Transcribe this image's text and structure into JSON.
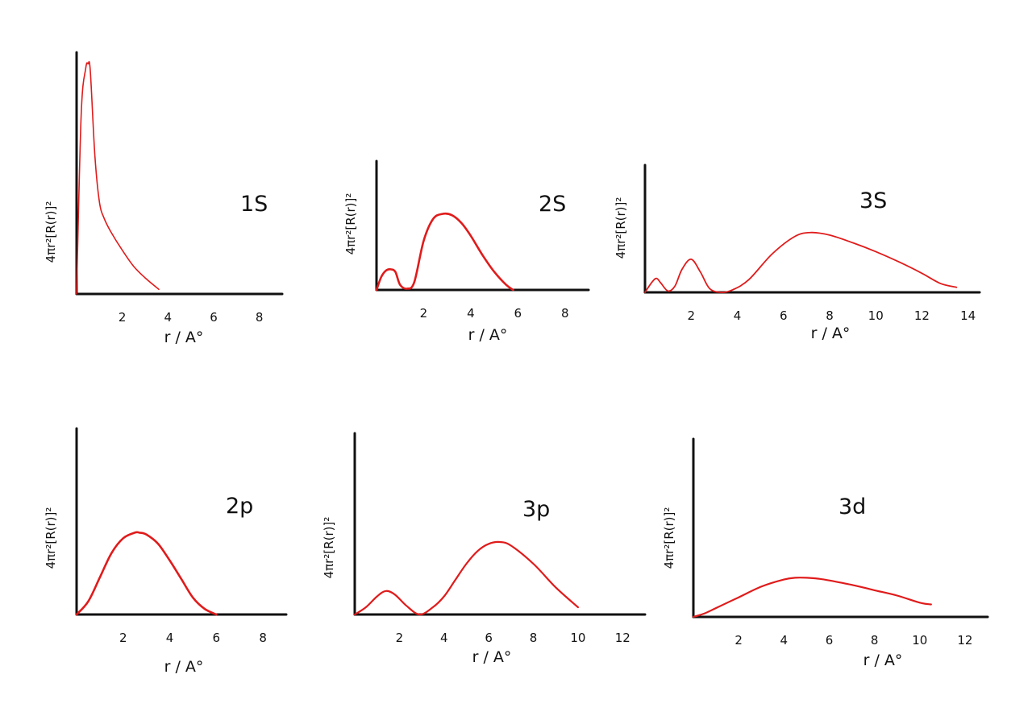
{
  "charts": [
    {
      "id": "1s",
      "label": "1S",
      "ylabel": "4πr²[R(r)]²",
      "xlabel": "r / A°",
      "ticks": [
        "2",
        "4",
        "6",
        "8"
      ]
    },
    {
      "id": "2s",
      "label": "2S",
      "ylabel": "4πr²[R(r)]²",
      "xlabel": "r / A°",
      "ticks": [
        "2",
        "4",
        "6",
        "8"
      ]
    },
    {
      "id": "3s",
      "label": "3S",
      "ylabel": "4πr²[R(r)]²",
      "xlabel": "r / A°",
      "ticks": [
        "2",
        "4",
        "6",
        "8",
        "10",
        "12",
        "14"
      ]
    },
    {
      "id": "2p",
      "label": "2p",
      "ylabel": "4πr²[R(r)]²",
      "xlabel": "r / A°",
      "ticks": [
        "2",
        "4",
        "6",
        "8"
      ]
    },
    {
      "id": "3p",
      "label": "3p",
      "ylabel": "4πr²[R(r)]²",
      "xlabel": "r / A°",
      "ticks": [
        "2",
        "4",
        "6",
        "8",
        "10",
        "12"
      ]
    },
    {
      "id": "3d",
      "label": "3d",
      "ylabel": "4πr²[R(r)]²",
      "xlabel": "r / A°",
      "ticks": [
        "2",
        "4",
        "6",
        "8",
        "10",
        "12"
      ]
    }
  ],
  "chart_data": [
    {
      "type": "line",
      "orbital": "1s",
      "xlabel": "r / A°",
      "ylabel": "4πr²[R(r)]²",
      "xlim": [
        0,
        9
      ],
      "ylim": [
        0,
        1.05
      ],
      "x": [
        0,
        0.2,
        0.4,
        0.5,
        0.6,
        0.8,
        1.0,
        1.2,
        1.5,
        2.0,
        2.5,
        3.0,
        3.6
      ],
      "y": [
        0,
        0.78,
        0.98,
        1.0,
        0.97,
        0.6,
        0.4,
        0.33,
        0.27,
        0.19,
        0.12,
        0.07,
        0.02
      ]
    },
    {
      "type": "line",
      "orbital": "2s",
      "xlabel": "r / A°",
      "ylabel": "4πr²[R(r)]²",
      "xlim": [
        0,
        9
      ],
      "ylim": [
        0,
        1.0
      ],
      "x": [
        0,
        0.2,
        0.4,
        0.6,
        0.8,
        1.0,
        1.3,
        1.6,
        2.0,
        2.4,
        2.8,
        3.2,
        3.6,
        4.0,
        4.5,
        5.0,
        5.5,
        5.8
      ],
      "y": [
        0,
        0.1,
        0.15,
        0.16,
        0.14,
        0.04,
        0.01,
        0.06,
        0.38,
        0.55,
        0.59,
        0.58,
        0.52,
        0.42,
        0.27,
        0.14,
        0.04,
        0
      ]
    },
    {
      "type": "line",
      "orbital": "3s",
      "xlabel": "r / A°",
      "ylabel": "4πr²[R(r)]²",
      "xlim": [
        0,
        14.5
      ],
      "ylim": [
        0,
        1.0
      ],
      "x": [
        0,
        0.3,
        0.5,
        0.7,
        1.0,
        1.3,
        1.6,
        2.0,
        2.4,
        2.8,
        3.3,
        3.8,
        4.5,
        5.5,
        6.5,
        7.2,
        8.0,
        9.0,
        10.0,
        11.0,
        12.0,
        12.8,
        13.5
      ],
      "y": [
        0,
        0.08,
        0.11,
        0.07,
        0.01,
        0.05,
        0.18,
        0.26,
        0.16,
        0.03,
        0,
        0.02,
        0.1,
        0.3,
        0.44,
        0.47,
        0.45,
        0.39,
        0.32,
        0.24,
        0.15,
        0.07,
        0.04
      ]
    },
    {
      "type": "line",
      "orbital": "2p",
      "xlabel": "r / A°",
      "ylabel": "4πr²[R(r)]²",
      "xlim": [
        0,
        9
      ],
      "ylim": [
        0,
        1.0
      ],
      "x": [
        0,
        0.5,
        1.0,
        1.5,
        2.0,
        2.5,
        2.7,
        3.0,
        3.5,
        4.0,
        4.5,
        5.0,
        5.5,
        6.0
      ],
      "y": [
        0,
        0.07,
        0.2,
        0.33,
        0.41,
        0.44,
        0.44,
        0.43,
        0.38,
        0.29,
        0.19,
        0.09,
        0.03,
        0
      ]
    },
    {
      "type": "line",
      "orbital": "3p",
      "xlabel": "r / A°",
      "ylabel": "4πr²[R(r)]²",
      "xlim": [
        0,
        13
      ],
      "ylim": [
        0,
        1.0
      ],
      "x": [
        0,
        0.5,
        1.0,
        1.4,
        1.8,
        2.3,
        2.9,
        3.5,
        4.0,
        4.5,
        5.0,
        5.5,
        6.0,
        6.5,
        7.0,
        8.0,
        9.0,
        10.0
      ],
      "y": [
        0,
        0.04,
        0.1,
        0.13,
        0.11,
        0.05,
        0,
        0.04,
        0.1,
        0.19,
        0.28,
        0.35,
        0.39,
        0.4,
        0.38,
        0.28,
        0.15,
        0.04
      ]
    },
    {
      "type": "line",
      "orbital": "3d",
      "xlabel": "r / A°",
      "ylabel": "4πr²[R(r)]²",
      "xlim": [
        0,
        13
      ],
      "ylim": [
        0,
        1.0
      ],
      "x": [
        0,
        0.5,
        1.0,
        2.0,
        3.0,
        4.0,
        4.5,
        5.0,
        5.5,
        6.0,
        7.0,
        8.0,
        9.0,
        10.0,
        10.5
      ],
      "y": [
        0,
        0.02,
        0.05,
        0.11,
        0.17,
        0.21,
        0.22,
        0.22,
        0.215,
        0.205,
        0.18,
        0.15,
        0.12,
        0.08,
        0.07
      ]
    }
  ]
}
